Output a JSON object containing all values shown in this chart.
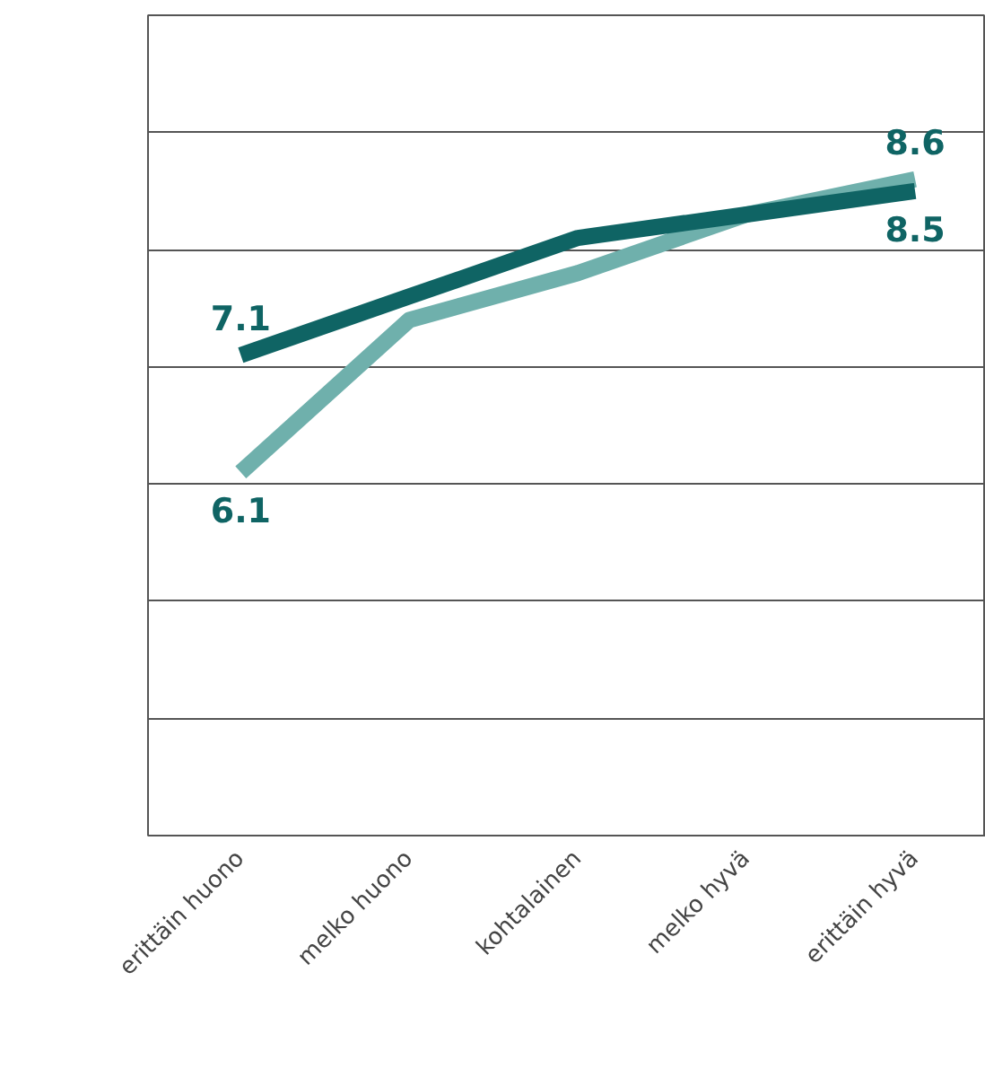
{
  "chart_data": {
    "type": "line",
    "categories": [
      "erittäin huono",
      "melko huono",
      "kohtalainen",
      "melko hyvä",
      "erittäin hyvä"
    ],
    "series": [
      {
        "color": "#6fb0ac",
        "values": [
          6.1,
          7.4,
          7.8,
          8.3,
          8.6
        ],
        "value_labels": [
          "6.1",
          null,
          null,
          null,
          "8.6"
        ]
      },
      {
        "color": "#0f6464",
        "values": [
          7.1,
          7.6,
          8.1,
          8.3,
          8.5
        ],
        "value_labels": [
          "7.1",
          null,
          null,
          null,
          "8.5"
        ]
      }
    ],
    "ylim": [
      3,
      10
    ],
    "yticks": [
      {
        "value": 3,
        "label": null
      },
      {
        "value": 4,
        "label": null
      },
      {
        "value": 5,
        "label": null
      },
      {
        "value": 6,
        "label": null
      },
      {
        "value": 7,
        "label": null
      },
      {
        "value": 8,
        "label": null
      },
      {
        "value": 9,
        "label": null
      },
      {
        "value": 10,
        "label": null
      }
    ],
    "grid": "y",
    "marker": "none",
    "line_style": "solid"
  }
}
